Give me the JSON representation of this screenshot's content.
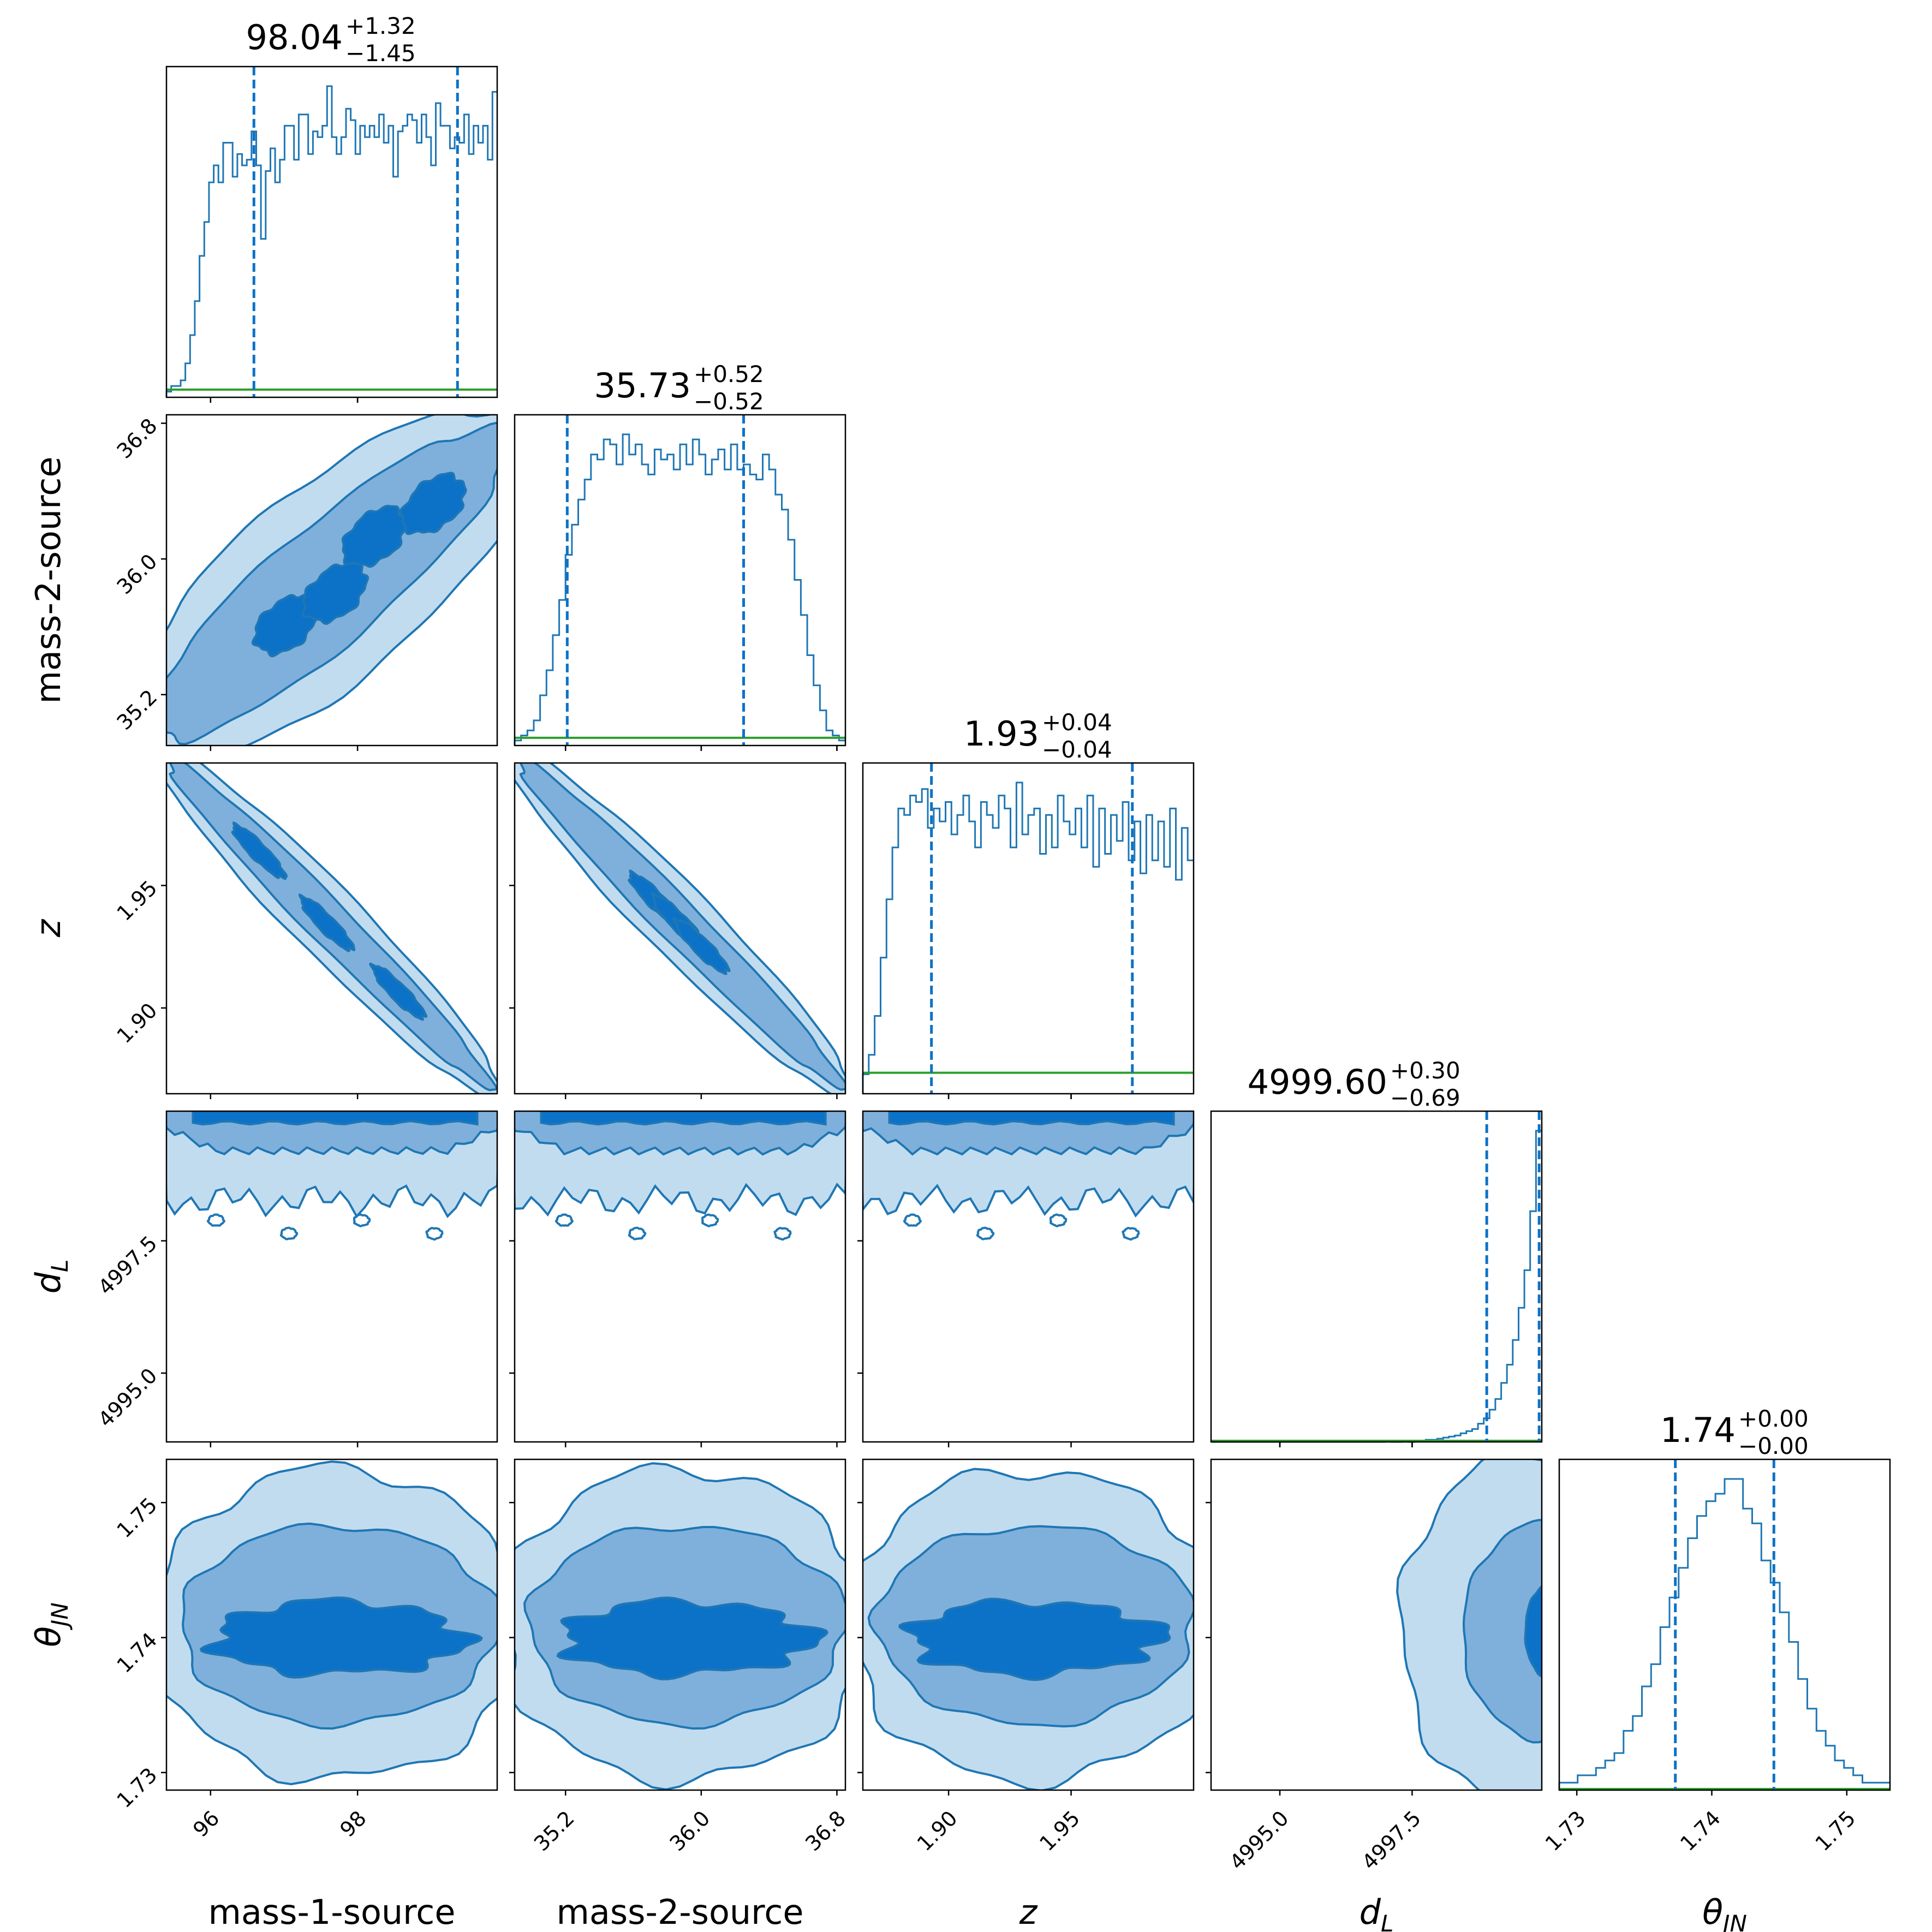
{
  "colors": {
    "hist": "#1f77b4",
    "quantile": "#0b72c7",
    "truth": "#2ca02c",
    "level1": "#c2dcef",
    "level2": "#7fb0db",
    "level3": "#0b72c7",
    "contour_line": "#1f77b4"
  },
  "chart_data": {
    "type": "corner",
    "parameters": [
      {
        "key": "m1",
        "label": "mass-1-source",
        "range": [
          95.4,
          99.9
        ],
        "ticks": [
          96,
          98
        ],
        "tick_labels": [
          "96",
          "98"
        ],
        "title_main": "98.04",
        "title_plus": "+1.32",
        "title_minus": "−1.45",
        "quantiles": [
          96.59,
          99.36
        ],
        "truth": 0.02
      },
      {
        "key": "m2",
        "label": "mass-2-source",
        "range": [
          34.9,
          36.85
        ],
        "ticks": [
          35.2,
          36.0,
          36.8
        ],
        "tick_labels": [
          "35.2",
          "36.0",
          "36.8"
        ],
        "title_main": "35.73",
        "title_plus": "+0.52",
        "title_minus": "−0.52",
        "quantiles": [
          35.21,
          36.25
        ],
        "truth": 0.02
      },
      {
        "key": "z",
        "label": "z",
        "range": [
          1.865,
          2.0
        ],
        "ticks": [
          1.9,
          1.95
        ],
        "tick_labels": [
          "1.90",
          "1.95"
        ],
        "title_main": "1.93",
        "title_plus": "+0.04",
        "title_minus": "−0.04",
        "quantiles": [
          1.893,
          1.975
        ],
        "truth": 0.06
      },
      {
        "key": "dL",
        "label": "d",
        "label_sub": "L",
        "range": [
          4993.7,
          4999.95
        ],
        "ticks": [
          4995.0,
          4997.5
        ],
        "tick_labels": [
          "4995.0",
          "4997.5"
        ],
        "title_main": "4999.60",
        "title_plus": "+0.30",
        "title_minus": "−0.69",
        "quantiles": [
          4998.91,
          4999.9
        ],
        "truth": 0.0
      },
      {
        "key": "theta",
        "label": "θ",
        "label_sub": "JN",
        "range": [
          1.7287,
          1.7532
        ],
        "ticks": [
          1.73,
          1.74,
          1.75
        ],
        "tick_labels": [
          "1.73",
          "1.74",
          "1.75"
        ],
        "title_main": "1.74",
        "title_plus": "+0.00",
        "title_minus": "−0.00",
        "quantiles": [
          1.7373,
          1.7446
        ],
        "truth": 0.0
      }
    ],
    "histograms": [
      {
        "param": "m1",
        "start": 95.4,
        "end": 99.9,
        "counts": [
          1,
          2,
          2,
          3,
          6,
          11,
          17,
          25,
          31,
          38,
          41,
          38,
          45,
          45,
          39,
          43,
          41,
          42,
          47,
          41,
          28,
          40,
          44,
          38,
          42,
          48,
          48,
          42,
          50,
          50,
          43,
          47,
          46,
          48,
          55,
          46,
          43,
          46,
          51,
          49,
          43,
          48,
          46,
          48,
          46,
          50,
          45,
          48,
          39,
          47,
          48,
          50,
          49,
          45,
          50,
          46,
          41,
          52,
          48,
          48,
          44,
          46,
          45,
          50,
          43,
          48,
          45,
          48,
          42,
          54
        ]
      },
      {
        "param": "m2",
        "start": 34.9,
        "end": 36.85,
        "counts": [
          1,
          2,
          3,
          5,
          10,
          15,
          22,
          29,
          38,
          44,
          49,
          53,
          58,
          57,
          61,
          60,
          56,
          62,
          58,
          60,
          56,
          54,
          59,
          57,
          58,
          55,
          60,
          56,
          61,
          58,
          54,
          57,
          59,
          55,
          60,
          55,
          56,
          54,
          53,
          58,
          55,
          50,
          47,
          41,
          33,
          26,
          18,
          12,
          7,
          3,
          2,
          1
        ]
      },
      {
        "param": "z",
        "start": 1.865,
        "end": 2.0,
        "counts": [
          3,
          6,
          12,
          21,
          30,
          38,
          44,
          43,
          46,
          45,
          47,
          41,
          44,
          42,
          45,
          40,
          43,
          46,
          42,
          38,
          45,
          43,
          41,
          46,
          44,
          38,
          48,
          40,
          43,
          44,
          37,
          43,
          38,
          46,
          42,
          40,
          44,
          38,
          46,
          35,
          44,
          37,
          43,
          39,
          45,
          36,
          42,
          34,
          43,
          36,
          42,
          35,
          44,
          33,
          41,
          36
        ]
      },
      {
        "param": "dL",
        "start": 4993.7,
        "end": 4999.95,
        "counts": [
          0,
          0,
          0,
          0,
          0,
          0,
          0,
          0,
          0,
          0,
          0,
          0,
          0,
          0,
          0,
          0,
          0,
          0,
          0,
          0,
          0,
          0,
          0,
          0,
          0,
          0,
          0,
          0,
          0,
          0,
          1,
          0,
          0,
          1,
          0,
          1,
          1,
          2,
          2,
          3,
          4,
          5,
          6,
          8,
          10,
          12,
          17,
          22,
          30,
          40,
          55,
          72,
          95,
          125,
          160,
          215,
          290
        ]
      },
      {
        "param": "theta",
        "start": 1.7287,
        "end": 1.7532,
        "counts": [
          1,
          1,
          2,
          2,
          3,
          4,
          5,
          8,
          10,
          14,
          17,
          22,
          26,
          30,
          34,
          37,
          39,
          40,
          42,
          42,
          38,
          36,
          31,
          28,
          24,
          20,
          15,
          11,
          8,
          6,
          4,
          3,
          2,
          1,
          1,
          1
        ]
      }
    ],
    "pairs": [
      {
        "x": "m1",
        "y": "m2",
        "center": [
          97.6,
          35.85
        ],
        "slope": 0.37,
        "width": 0.18,
        "blobs": [
          [
            -0.7,
            0.1
          ],
          [
            0.0,
            0.35
          ],
          [
            0.8,
            -0.2
          ],
          [
            1.6,
            0.25
          ]
        ]
      },
      {
        "x": "m1",
        "y": "z",
        "center": [
          97.6,
          1.935
        ],
        "slope": -0.0305,
        "width": 0.0045,
        "blobs": [
          [
            -1.2,
            0.0
          ],
          [
            0.0,
            0.2
          ],
          [
            1.2,
            -0.1
          ]
        ]
      },
      {
        "x": "m2",
        "y": "z",
        "center": [
          35.87,
          1.935
        ],
        "slope": -0.07,
        "width": 0.0045,
        "blobs": [
          [
            -0.4,
            0.1
          ],
          [
            0.0,
            0.0
          ],
          [
            0.4,
            0.1
          ]
        ]
      },
      {
        "x": "m1",
        "y": "dL",
        "band": true
      },
      {
        "x": "m2",
        "y": "dL",
        "band": true
      },
      {
        "x": "z",
        "y": "dL",
        "band": true
      },
      {
        "x": "m1",
        "y": "theta",
        "blob2d": true
      },
      {
        "x": "m2",
        "y": "theta",
        "blob2d": true
      },
      {
        "x": "z",
        "y": "theta",
        "blob2d": true
      },
      {
        "x": "dL",
        "y": "theta",
        "edge": true
      }
    ]
  }
}
